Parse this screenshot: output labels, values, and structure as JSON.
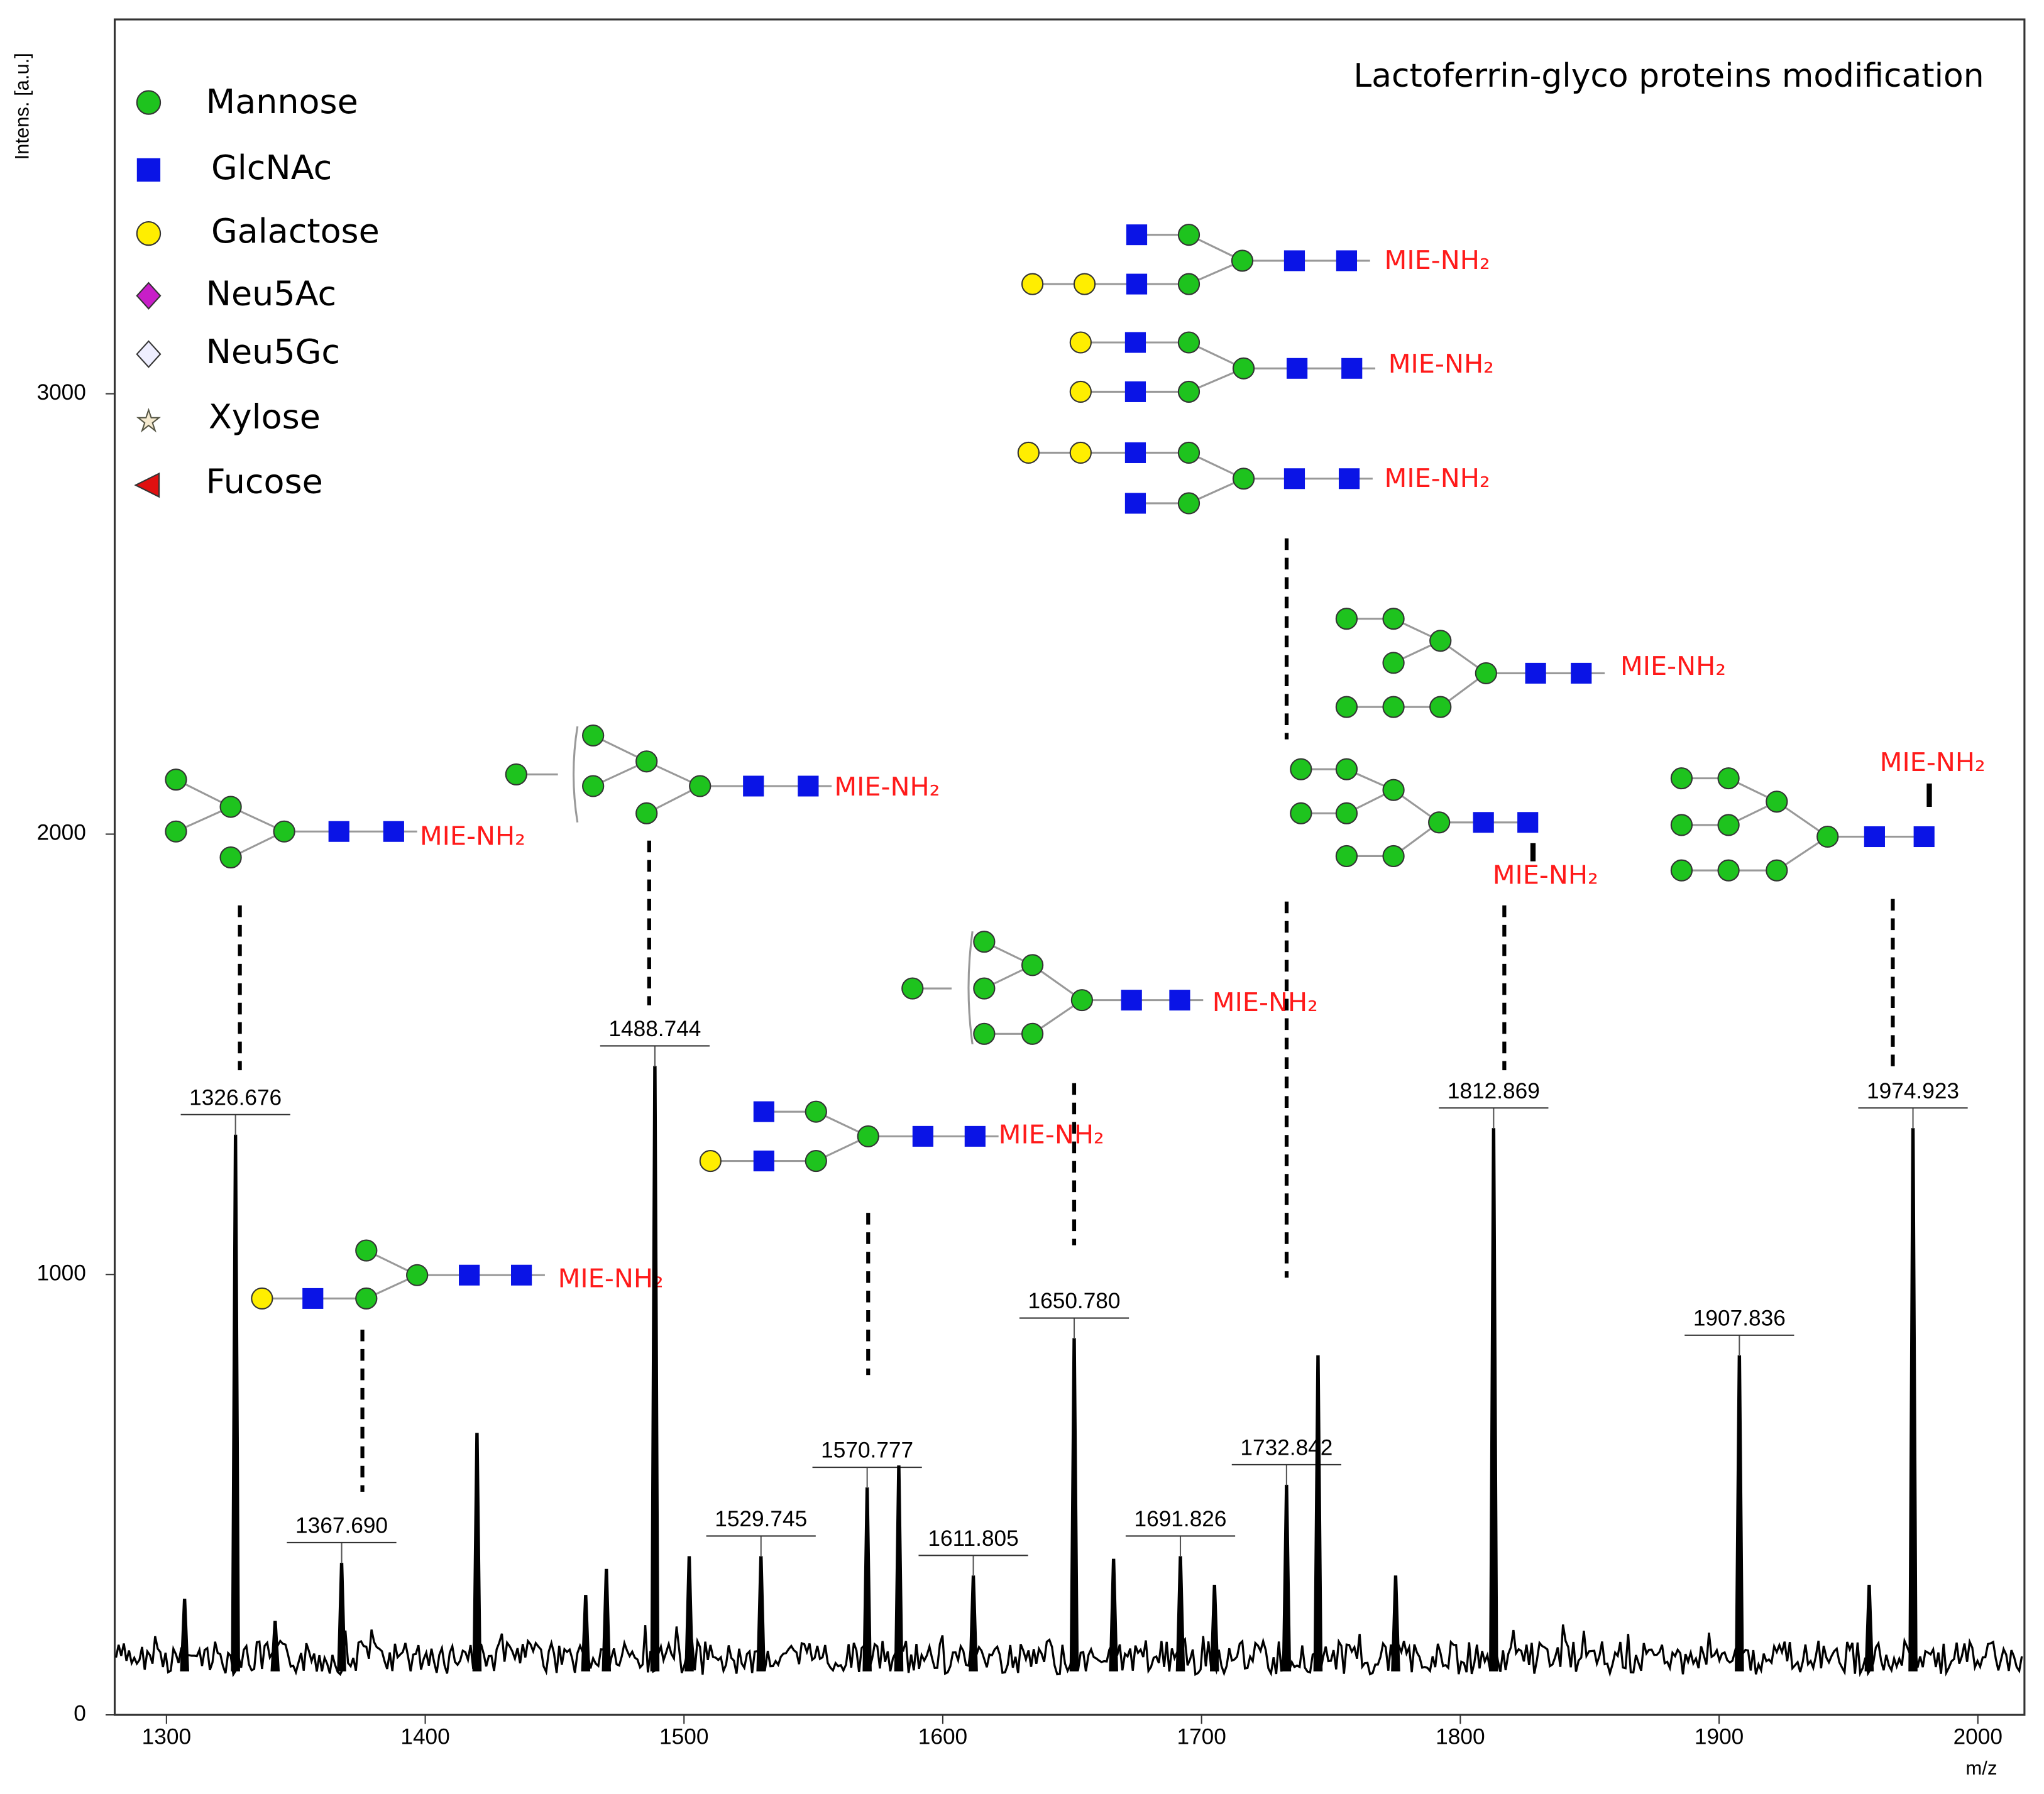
{
  "chart_data": {
    "type": "spectrum",
    "title": "Lactoferrin-glyco proteins modification",
    "y_label": "Intens. [a.u.]",
    "x_label": "m/z",
    "color": "#000000",
    "xlim": [
      1280,
      2018
    ],
    "ylim": [
      0,
      3850
    ],
    "xticks": [
      1300,
      1400,
      1500,
      1600,
      1700,
      1800,
      1900,
      2000
    ],
    "yticks": [
      0,
      1000,
      2000,
      3000
    ],
    "x": [
      1307,
      1326.676,
      1342,
      1367.69,
      1420,
      1462,
      1470,
      1488.744,
      1502,
      1529.745,
      1570.777,
      1583,
      1611.805,
      1650.78,
      1666,
      1691.826,
      1705,
      1732.842,
      1745,
      1775,
      1812.869,
      1907.836,
      1958,
      1974.923
    ],
    "values": [
      262,
      1316,
      212,
      344,
      639,
      271,
      330,
      1472,
      359,
      359,
      515,
      565,
      315,
      854,
      353,
      359,
      294,
      521,
      815,
      315,
      1331,
      815,
      294,
      1331
    ],
    "x_labels": [
      null,
      "1326.676",
      null,
      "1367.690",
      null,
      null,
      null,
      "1488.744",
      null,
      "1529.745",
      "1570.777",
      null,
      "1611.805",
      "1650.780",
      null,
      "1691.826",
      null,
      "1732.842",
      null,
      null,
      "1812.869",
      "1907.836",
      null,
      "1974.923"
    ],
    "legend": [
      "Mannose",
      "GlcNAc",
      "Galactose",
      "Neu5Ac",
      "Neu5Gc",
      "Xylose",
      "Fucose"
    ],
    "annotations": [
      "MIE-NH₂",
      "MIE-NH₂",
      "MIE-NH₂",
      "MIE-NH₂",
      "MIE-NH₂",
      "MIE-NH₂",
      "MIE-NH₂",
      "MIE-NH₂",
      "MIE-NH₂",
      "MIE-NH₂",
      "MIE-NH₂"
    ]
  }
}
